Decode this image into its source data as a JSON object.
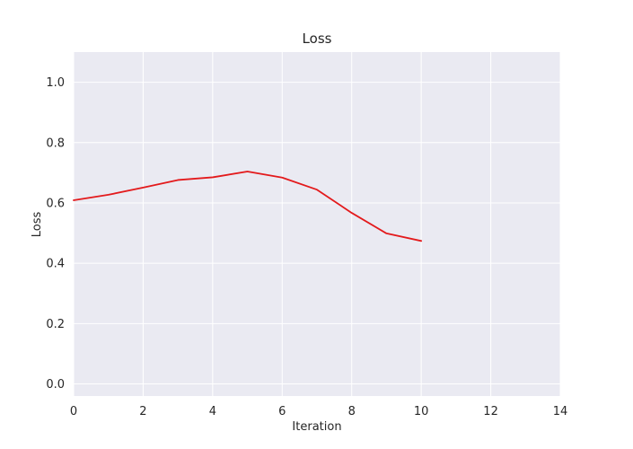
{
  "chart_data": {
    "type": "line",
    "title": "Loss",
    "xlabel": "Iteration",
    "ylabel": "Loss",
    "xlim": [
      0,
      14
    ],
    "ylim": [
      -0.04,
      1.1
    ],
    "xticks": [
      0,
      2,
      4,
      6,
      8,
      10,
      12,
      14
    ],
    "yticks": [
      0.0,
      0.2,
      0.4,
      0.6,
      0.8,
      1.0
    ],
    "xtick_labels": [
      "0",
      "2",
      "4",
      "6",
      "8",
      "10",
      "12",
      "14"
    ],
    "ytick_labels": [
      "0.0",
      "0.2",
      "0.4",
      "0.6",
      "0.8",
      "1.0"
    ],
    "grid": true,
    "background_color": "#eaeaf2",
    "grid_color": "#ffffff",
    "series": [
      {
        "color": "#e31a1c",
        "x": [
          0,
          1,
          2,
          3,
          4,
          5,
          6,
          7,
          8,
          9,
          10
        ],
        "y": [
          0.609,
          0.627,
          0.651,
          0.676,
          0.685,
          0.704,
          0.684,
          0.644,
          0.567,
          0.499,
          0.474
        ]
      }
    ]
  }
}
